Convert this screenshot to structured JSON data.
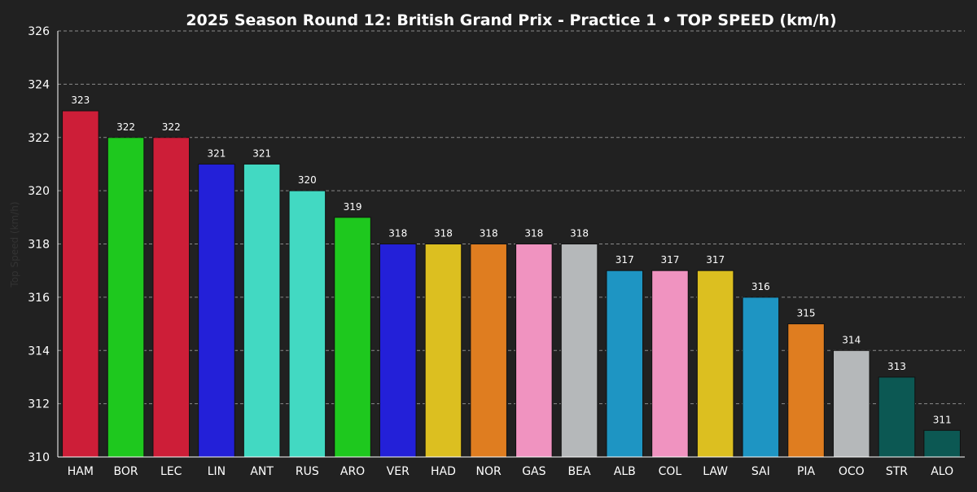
{
  "chart_data": {
    "type": "bar",
    "title": "2025 Season Round 12: British Grand Prix - Practice 1  •  TOP SPEED (km/h)",
    "xlabel": "",
    "ylabel": "Top Speed (km/h)",
    "ylim": [
      310,
      326
    ],
    "yticks": [
      310,
      312,
      314,
      316,
      318,
      320,
      322,
      324,
      326
    ],
    "grid": true,
    "categories": [
      "HAM",
      "BOR",
      "LEC",
      "LIN",
      "ANT",
      "RUS",
      "ARO",
      "VER",
      "HAD",
      "NOR",
      "GAS",
      "BEA",
      "ALB",
      "COL",
      "LAW",
      "SAI",
      "PIA",
      "OCO",
      "STR",
      "ALO"
    ],
    "values": [
      323,
      322,
      322,
      321,
      321,
      320,
      319,
      318,
      318,
      318,
      318,
      318,
      317,
      317,
      317,
      316,
      315,
      314,
      313,
      311
    ],
    "colors": [
      "#cd1e38",
      "#1ec81e",
      "#cd1e38",
      "#2320d8",
      "#42d9c2",
      "#42d9c2",
      "#1ec81e",
      "#2320d8",
      "#dcbf20",
      "#df7d20",
      "#f093c0",
      "#b5b8ba",
      "#1e95c3",
      "#f093c0",
      "#dcbf20",
      "#1e95c3",
      "#df7d20",
      "#b5b8ba",
      "#0c5853",
      "#0c5853"
    ]
  },
  "colors": {
    "background": "#212121",
    "text": "#ffffff",
    "grid": "#8a8a8a",
    "ylabel": "#333333",
    "bar_edge": "#111111"
  }
}
